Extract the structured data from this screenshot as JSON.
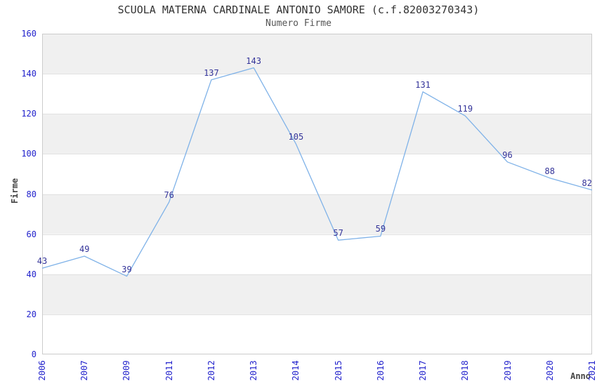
{
  "header": {
    "title": "SCUOLA MATERNA CARDINALE ANTONIO SAMORE (c.f.82003270343)",
    "subtitle": "Numero Firme"
  },
  "chart_data": {
    "type": "line",
    "title": "SCUOLA MATERNA CARDINALE ANTONIO SAMORE (c.f.82003270343)",
    "subtitle": "Numero Firme",
    "categories": [
      "2006",
      "2007",
      "2009",
      "2011",
      "2012",
      "2013",
      "2014",
      "2015",
      "2016",
      "2017",
      "2018",
      "2019",
      "2020",
      "2021"
    ],
    "values": [
      43,
      49,
      39,
      76,
      137,
      143,
      105,
      57,
      59,
      131,
      119,
      96,
      88,
      82
    ],
    "xlabel": "Anno",
    "ylabel": "Firme",
    "ylim": [
      0,
      160
    ],
    "yticks": [
      0,
      20,
      40,
      60,
      80,
      100,
      120,
      140,
      160
    ],
    "grid": "horizontal-bands-alternating",
    "legend": "none",
    "data_labels": true,
    "colors": {
      "line": "#7FB2E8",
      "data_label": "#333399",
      "tick_label": "#2222CC",
      "axis_title": "#444444",
      "band": "#F0F0F0",
      "band_line": "#E2E2E2",
      "plot_border": "#CCCCCC",
      "title": "#333333",
      "subtitle": "#555555",
      "background": "#FFFFFF"
    }
  }
}
